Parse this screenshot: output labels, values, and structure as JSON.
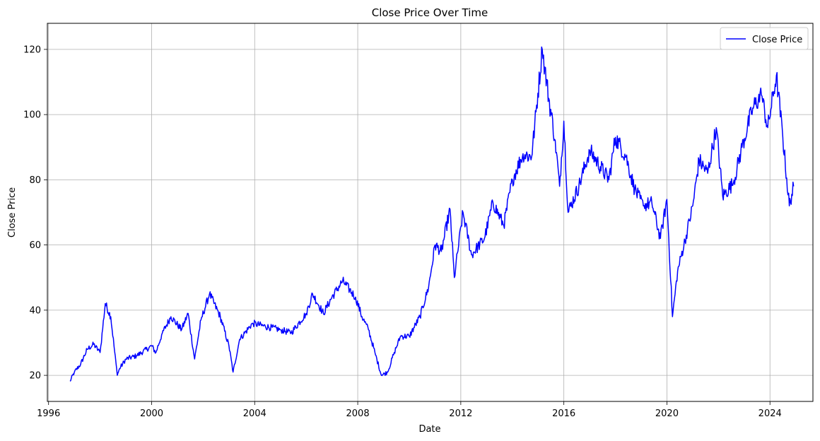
{
  "chart_data": {
    "type": "line",
    "title": "Close Price Over Time",
    "xlabel": "Date",
    "ylabel": "Close Price",
    "x_ticks": [
      "1996",
      "2000",
      "2004",
      "2008",
      "2012",
      "2016",
      "2020",
      "2024"
    ],
    "y_ticks": [
      20,
      40,
      60,
      80,
      100,
      120
    ],
    "xlim": [
      "1995-12-15",
      "2025-09-01"
    ],
    "ylim": [
      12,
      128
    ],
    "grid": true,
    "legend_position": "top-right",
    "series": [
      {
        "name": "Close Price",
        "color": "#0000ff",
        "points": [
          [
            "1996-11-01",
            18.2
          ],
          [
            "1997-01-01",
            21
          ],
          [
            "1997-04-01",
            23.5
          ],
          [
            "1997-07-01",
            28
          ],
          [
            "1997-10-01",
            29.5
          ],
          [
            "1998-01-01",
            27
          ],
          [
            "1998-03-15",
            42
          ],
          [
            "1998-06-01",
            38
          ],
          [
            "1998-09-01",
            20
          ],
          [
            "1998-10-01",
            22
          ],
          [
            "1999-01-01",
            25
          ],
          [
            "1999-06-01",
            26
          ],
          [
            "2000-01-01",
            29
          ],
          [
            "2000-03-01",
            27
          ],
          [
            "2000-06-01",
            33
          ],
          [
            "2000-10-01",
            38
          ],
          [
            "2001-03-01",
            34
          ],
          [
            "2001-06-01",
            39
          ],
          [
            "2001-09-01",
            25
          ],
          [
            "2001-12-01",
            37
          ],
          [
            "2002-04-01",
            45
          ],
          [
            "2002-09-01",
            38
          ],
          [
            "2003-01-01",
            29
          ],
          [
            "2003-03-01",
            21
          ],
          [
            "2003-06-01",
            31
          ],
          [
            "2003-12-01",
            36
          ],
          [
            "2004-06-01",
            35
          ],
          [
            "2005-01-01",
            34
          ],
          [
            "2005-06-01",
            33
          ],
          [
            "2006-01-01",
            39
          ],
          [
            "2006-04-01",
            45
          ],
          [
            "2006-09-01",
            39
          ],
          [
            "2007-01-01",
            44
          ],
          [
            "2007-06-01",
            49
          ],
          [
            "2007-12-01",
            44
          ],
          [
            "2008-03-01",
            38
          ],
          [
            "2008-06-01",
            34
          ],
          [
            "2008-09-01",
            27
          ],
          [
            "2008-12-01",
            20
          ],
          [
            "2009-03-01",
            21
          ],
          [
            "2009-06-01",
            27
          ],
          [
            "2009-09-01",
            32
          ],
          [
            "2010-01-01",
            32
          ],
          [
            "2010-06-01",
            38
          ],
          [
            "2010-10-01",
            47
          ],
          [
            "2011-01-01",
            60
          ],
          [
            "2011-04-01",
            58
          ],
          [
            "2011-08-01",
            71
          ],
          [
            "2011-10-01",
            50
          ],
          [
            "2012-02-01",
            70
          ],
          [
            "2012-06-01",
            57
          ],
          [
            "2012-12-01",
            62
          ],
          [
            "2013-04-01",
            73
          ],
          [
            "2013-09-01",
            66
          ],
          [
            "2014-01-01",
            80
          ],
          [
            "2014-06-01",
            88
          ],
          [
            "2014-10-01",
            87
          ],
          [
            "2015-03-01",
            120
          ],
          [
            "2015-06-01",
            105
          ],
          [
            "2015-09-01",
            92
          ],
          [
            "2015-11-01",
            78
          ],
          [
            "2016-01-01",
            98
          ],
          [
            "2016-03-01",
            70
          ],
          [
            "2016-08-01",
            78
          ],
          [
            "2017-01-01",
            89
          ],
          [
            "2017-06-01",
            84
          ],
          [
            "2017-10-01",
            80
          ],
          [
            "2018-01-01",
            93
          ],
          [
            "2018-06-01",
            87
          ],
          [
            "2018-10-01",
            77
          ],
          [
            "2019-02-01",
            72
          ],
          [
            "2019-06-01",
            73
          ],
          [
            "2019-10-01",
            62
          ],
          [
            "2020-01-01",
            74
          ],
          [
            "2020-03-20",
            38
          ],
          [
            "2020-06-01",
            52
          ],
          [
            "2020-10-01",
            63
          ],
          [
            "2021-01-01",
            72
          ],
          [
            "2021-04-01",
            86
          ],
          [
            "2021-08-01",
            82
          ],
          [
            "2021-12-01",
            96
          ],
          [
            "2022-03-01",
            75
          ],
          [
            "2022-08-01",
            79
          ],
          [
            "2022-12-01",
            90
          ],
          [
            "2023-05-01",
            102
          ],
          [
            "2023-09-01",
            106
          ],
          [
            "2023-12-01",
            96
          ],
          [
            "2024-04-01",
            112
          ],
          [
            "2024-07-01",
            93
          ],
          [
            "2024-10-01",
            72
          ],
          [
            "2024-12-01",
            78
          ]
        ]
      }
    ]
  }
}
